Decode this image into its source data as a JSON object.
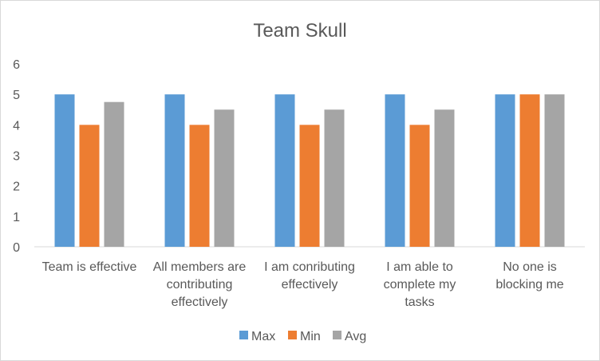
{
  "chart_data": {
    "type": "bar",
    "title": "Team Skull",
    "categories": [
      [
        "Team is effective"
      ],
      [
        "All members are",
        "contributing",
        "effectively"
      ],
      [
        "I am conributing",
        "effectively"
      ],
      [
        "I am able to",
        "complete my",
        "tasks"
      ],
      [
        "No one is",
        "blocking me"
      ]
    ],
    "series": [
      {
        "name": "Max",
        "color": "#5B9BD5",
        "values": [
          5,
          5,
          5,
          5,
          5
        ]
      },
      {
        "name": "Min",
        "color": "#ED7D31",
        "values": [
          4,
          4,
          4,
          4,
          5
        ]
      },
      {
        "name": "Avg",
        "color": "#A5A5A5",
        "values": [
          4.75,
          4.5,
          4.5,
          4.5,
          5
        ]
      }
    ],
    "ylim": [
      0,
      6
    ],
    "yticks": [
      0,
      1,
      2,
      3,
      4,
      5,
      6
    ],
    "grid": false,
    "legend_position": "bottom"
  }
}
